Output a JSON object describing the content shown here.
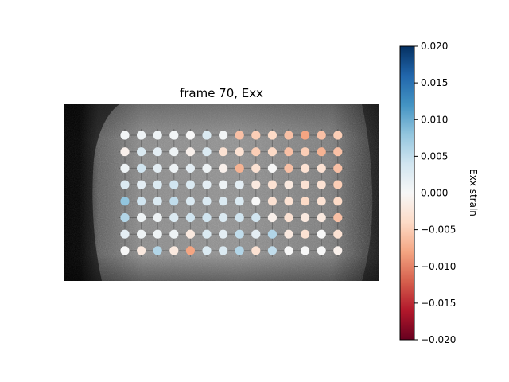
{
  "chart_data": {
    "type": "scatter",
    "title": "frame 70, Exx",
    "colorbar": {
      "label": "Exx strain",
      "range": [
        -0.02,
        0.02
      ],
      "ticks": [
        0.02,
        0.015,
        0.01,
        0.005,
        0.0,
        -0.005,
        -0.01,
        -0.015,
        -0.02
      ],
      "tick_labels": [
        "0.020",
        "0.015",
        "0.010",
        "0.005",
        "0.000",
        "−0.005",
        "−0.010",
        "−0.015",
        "−0.020"
      ],
      "colormap": "RdBu"
    },
    "grid": {
      "rows": 8,
      "cols": 14
    },
    "values": [
      [
        0.0005,
        0.001,
        0.001,
        0.0005,
        0.0,
        0.003,
        0.0005,
        -0.006,
        -0.005,
        -0.004,
        -0.006,
        -0.008,
        -0.006,
        -0.005
      ],
      [
        -0.001,
        0.003,
        0.002,
        0.001,
        -0.001,
        0.003,
        -0.003,
        -0.003,
        -0.005,
        -0.004,
        -0.006,
        -0.005,
        -0.007,
        -0.006
      ],
      [
        0.001,
        0.004,
        0.002,
        0.001,
        0.002,
        0.001,
        -0.001,
        -0.007,
        -0.003,
        0.0,
        -0.006,
        -0.003,
        -0.003,
        -0.006
      ],
      [
        0.003,
        0.002,
        0.003,
        0.004,
        0.003,
        0.002,
        0.001,
        0.002,
        -0.002,
        -0.003,
        -0.002,
        -0.003,
        -0.003,
        -0.005
      ],
      [
        0.008,
        0.004,
        0.003,
        0.005,
        0.003,
        0.003,
        0.003,
        0.003,
        0.0,
        -0.003,
        -0.003,
        -0.004,
        -0.003,
        -0.004
      ],
      [
        0.006,
        0.001,
        0.001,
        0.003,
        0.004,
        0.004,
        0.003,
        0.004,
        0.004,
        -0.001,
        -0.003,
        -0.002,
        -0.002,
        -0.006
      ],
      [
        0.002,
        0.001,
        0.001,
        0.001,
        -0.002,
        0.003,
        0.002,
        0.005,
        0.002,
        0.006,
        -0.002,
        -0.003,
        0.0,
        -0.003
      ],
      [
        0.0,
        -0.002,
        0.006,
        -0.002,
        -0.008,
        0.003,
        0.003,
        0.006,
        -0.003,
        0.005,
        0.0,
        0.0,
        0.0,
        -0.001
      ]
    ]
  }
}
